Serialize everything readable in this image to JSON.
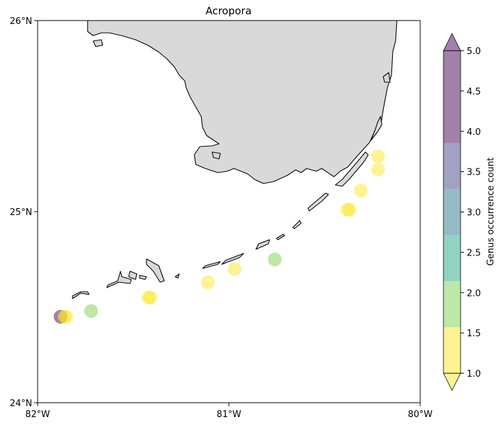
{
  "chart_data": {
    "type": "scatter",
    "title": "Acropora",
    "x_axis": {
      "range": [
        -82,
        -80
      ],
      "ticks": [
        -82,
        -81,
        -80
      ],
      "tick_labels": [
        "82°W",
        "81°W",
        "80°W"
      ]
    },
    "y_axis": {
      "range": [
        24,
        26
      ],
      "ticks": [
        24,
        25,
        26
      ],
      "tick_labels": [
        "24°N",
        "25°N",
        "26°N"
      ]
    },
    "points": [
      {
        "lon": -81.88,
        "lat": 24.45,
        "count": 4
      },
      {
        "lon": -81.86,
        "lat": 24.45,
        "count": 1
      },
      {
        "lon": -81.85,
        "lat": 24.45,
        "count": 1
      },
      {
        "lon": -81.72,
        "lat": 24.48,
        "count": 2
      },
      {
        "lon": -81.42,
        "lat": 24.55,
        "count": 1
      },
      {
        "lon": -81.41,
        "lat": 24.55,
        "count": 1
      },
      {
        "lon": -81.11,
        "lat": 24.63,
        "count": 1
      },
      {
        "lon": -80.97,
        "lat": 24.7,
        "count": 1
      },
      {
        "lon": -80.76,
        "lat": 24.75,
        "count": 2
      },
      {
        "lon": -80.38,
        "lat": 25.01,
        "count": 1
      },
      {
        "lon": -80.37,
        "lat": 25.01,
        "count": 1
      },
      {
        "lon": -80.31,
        "lat": 25.11,
        "count": 1
      },
      {
        "lon": -80.22,
        "lat": 25.22,
        "count": 1
      },
      {
        "lon": -80.22,
        "lat": 25.29,
        "count": 1
      }
    ],
    "colorbar": {
      "label": "Genus occurrence count",
      "range": [
        1,
        5
      ],
      "ticks": [
        1.0,
        1.5,
        2.0,
        2.5,
        3.0,
        3.5,
        4.0,
        4.5,
        5.0
      ],
      "tick_labels": [
        "1.0",
        "1.5",
        "2.0",
        "2.5",
        "3.0",
        "3.5",
        "4.0",
        "4.5",
        "5.0"
      ],
      "extend": "both",
      "bins": [
        {
          "from": 1.0,
          "to": 1.571,
          "color": "#fde725"
        },
        {
          "from": 1.571,
          "to": 2.143,
          "color": "#7ad151"
        },
        {
          "from": 2.143,
          "to": 2.714,
          "color": "#22a884"
        },
        {
          "from": 2.714,
          "to": 3.286,
          "color": "#2a788e"
        },
        {
          "from": 3.286,
          "to": 3.857,
          "color": "#414487"
        },
        {
          "from": 3.857,
          "to": 4.429,
          "color": "#440154"
        }
      ],
      "over_color": "#440154",
      "under_color": "#fde725"
    },
    "land_color": "#d9d9d9",
    "coastline_color": "#000000"
  }
}
